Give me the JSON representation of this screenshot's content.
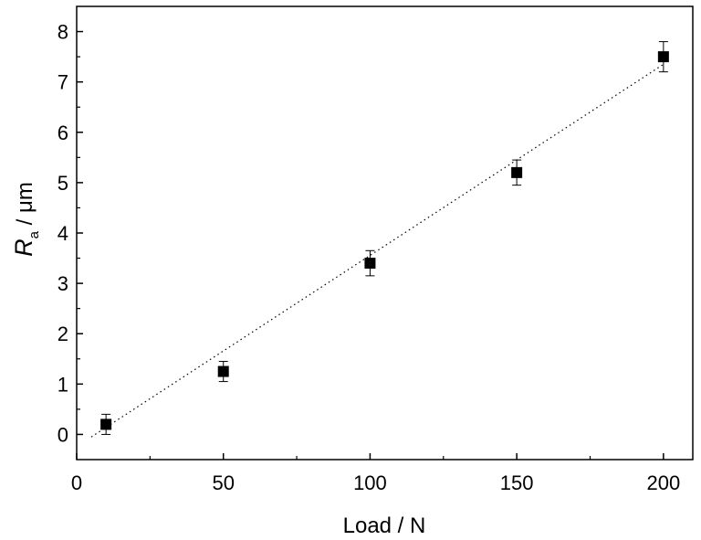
{
  "chart_data": {
    "type": "scatter",
    "xlabel": "Load / N",
    "ylabel": {
      "symbol": "R",
      "subscript": "a",
      "unit": " / μm"
    },
    "xlim": [
      0,
      210
    ],
    "ylim": [
      -0.5,
      8.5
    ],
    "x_ticks": [
      0,
      50,
      100,
      150,
      200
    ],
    "y_ticks": [
      0,
      1,
      2,
      3,
      4,
      5,
      6,
      7,
      8
    ],
    "grid": false,
    "series": [
      {
        "x": [
          10,
          50,
          100,
          150,
          200
        ],
        "y": [
          0.2,
          1.25,
          3.4,
          5.2,
          7.5
        ],
        "error": [
          0.2,
          0.2,
          0.25,
          0.25,
          0.3
        ],
        "marker": "square",
        "color": "#000000"
      }
    ],
    "fit_line": {
      "style": "dotted",
      "x": [
        5,
        200
      ],
      "y": [
        -0.05,
        7.35
      ]
    }
  }
}
